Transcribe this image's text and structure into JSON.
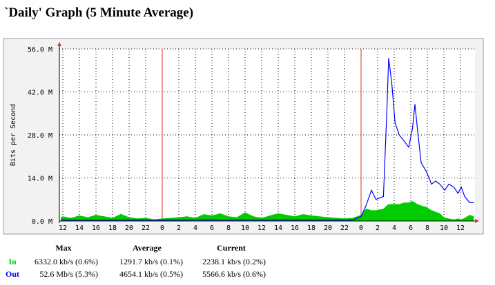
{
  "chart_data": {
    "type": "area-line",
    "title": "`Daily' Graph (5 Minute Average)",
    "y_label": "Bits per Second",
    "xlim": [
      11.58,
      61.75
    ],
    "ylim": [
      0,
      56
    ],
    "xticks": [
      {
        "value": 12,
        "label": "12"
      },
      {
        "value": 14,
        "label": "14"
      },
      {
        "value": 16,
        "label": "16"
      },
      {
        "value": 18,
        "label": "18"
      },
      {
        "value": 20,
        "label": "20"
      },
      {
        "value": 22,
        "label": "22"
      },
      {
        "value": 24,
        "label": "0"
      },
      {
        "value": 26,
        "label": "2"
      },
      {
        "value": 28,
        "label": "4"
      },
      {
        "value": 30,
        "label": "6"
      },
      {
        "value": 32,
        "label": "8"
      },
      {
        "value": 34,
        "label": "10"
      },
      {
        "value": 36,
        "label": "12"
      },
      {
        "value": 38,
        "label": "14"
      },
      {
        "value": 40,
        "label": "16"
      },
      {
        "value": 42,
        "label": "18"
      },
      {
        "value": 44,
        "label": "20"
      },
      {
        "value": 46,
        "label": "22"
      },
      {
        "value": 48,
        "label": "0"
      },
      {
        "value": 50,
        "label": "2"
      },
      {
        "value": 52,
        "label": "4"
      },
      {
        "value": 54,
        "label": "6"
      },
      {
        "value": 56,
        "label": "8"
      },
      {
        "value": 58,
        "label": "10"
      },
      {
        "value": 60,
        "label": "12"
      }
    ],
    "yticks": [
      {
        "value": 0,
        "label": "0.0 M"
      },
      {
        "value": 14,
        "label": "14.0 M"
      },
      {
        "value": 28,
        "label": "28.0 M"
      },
      {
        "value": 42,
        "label": "42.0 M"
      },
      {
        "value": 56,
        "label": "56.0 M"
      }
    ],
    "grid": true,
    "x": [
      11.75,
      12,
      13,
      14,
      15,
      16,
      17,
      18,
      19,
      20,
      21,
      22,
      23,
      24,
      25,
      26,
      27,
      28,
      29,
      30,
      31,
      32,
      33,
      34,
      35,
      36,
      37,
      38,
      39,
      40,
      41,
      42,
      43,
      44,
      45,
      46,
      47,
      48,
      48.6,
      49.25,
      49.8,
      50.7,
      51.1,
      51.33,
      51.7,
      52.1,
      52.6,
      53.2,
      53.75,
      54.2,
      54.5,
      54.8,
      55.25,
      55.9,
      56.5,
      57,
      57.5,
      58.1,
      58.6,
      59.2,
      59.7,
      60.1,
      60.5,
      61.1,
      61.6
    ],
    "series": [
      {
        "name": "In",
        "color": "#00cc00",
        "style": "area",
        "values": [
          1.2,
          1.5,
          1.0,
          1.8,
          1.2,
          2.0,
          1.5,
          1.0,
          2.3,
          1.2,
          0.8,
          1.0,
          0.5,
          0.8,
          1.0,
          1.2,
          1.5,
          1.0,
          2.2,
          1.8,
          2.5,
          1.5,
          1.2,
          2.8,
          1.5,
          1.0,
          1.8,
          2.5,
          2.0,
          1.5,
          2.2,
          1.8,
          1.5,
          1.2,
          1.0,
          0.8,
          1.0,
          2,
          4,
          3.5,
          3.5,
          4,
          5,
          5.5,
          5.5,
          5.5,
          5.5,
          6,
          6,
          6.5,
          6,
          5.5,
          5,
          4.5,
          3.5,
          3,
          2.5,
          1,
          0.8,
          0.5,
          0.8,
          0.5,
          1,
          2,
          1.5
        ]
      },
      {
        "name": "Out",
        "color": "#0000ff",
        "style": "line",
        "values": [
          0.3,
          0.3,
          0.3,
          0.3,
          0.3,
          0.3,
          0.3,
          0.3,
          0.3,
          0.3,
          0.3,
          0.3,
          0.3,
          0.3,
          0.3,
          0.3,
          0.3,
          0.3,
          0.3,
          0.3,
          0.3,
          0.3,
          0.3,
          0.3,
          0.3,
          0.3,
          0.3,
          0.3,
          0.3,
          0.3,
          0.3,
          0.3,
          0.3,
          0.3,
          0.3,
          0.3,
          0.3,
          1.5,
          5,
          10,
          7,
          8,
          35,
          53,
          45,
          32,
          28,
          26,
          24,
          30,
          38,
          30,
          19,
          16,
          12,
          13,
          12,
          10,
          12,
          11,
          9,
          11,
          8,
          6,
          6
        ]
      }
    ],
    "stats": {
      "headers": [
        "Max",
        "Average",
        "Current"
      ],
      "rows": [
        [
          "6332.0 kb/s (0.6%)",
          "1291.7 kb/s (0.1%)",
          "2238.1 kb/s (0.2%)"
        ],
        [
          "52.6 Mb/s (5.3%)",
          "4654.1 kb/s (0.5%)",
          "5566.6 kb/s (0.6%)"
        ]
      ]
    }
  }
}
